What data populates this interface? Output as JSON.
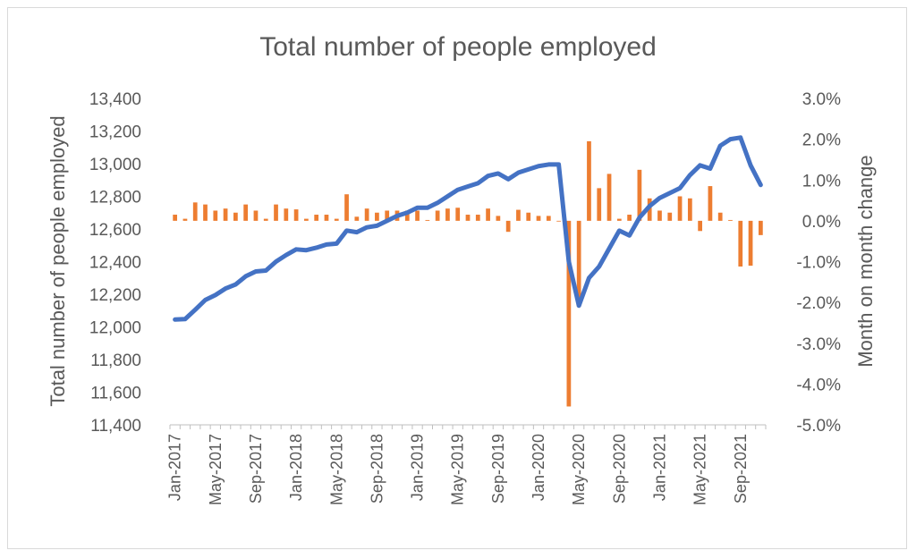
{
  "chart_data": {
    "type": "bar+line",
    "title": "Total number of people employed",
    "ylabel_left": "Total number of people employed",
    "ylabel_right": "Month on month change",
    "ylim_left": [
      11400,
      13400
    ],
    "yticks_left": [
      11400,
      11600,
      11800,
      12000,
      12200,
      12400,
      12600,
      12800,
      13000,
      13200,
      13400
    ],
    "yticklabels_left": [
      "11,400",
      "11,600",
      "11,800",
      "12,000",
      "12,200",
      "12,400",
      "12,600",
      "12,800",
      "13,000",
      "13,200",
      "13,400"
    ],
    "ylim_right": [
      -5.0,
      3.0
    ],
    "yticks_right": [
      -5,
      -4,
      -3,
      -2,
      -1,
      0,
      1,
      2,
      3
    ],
    "yticklabels_right": [
      "-5.0%",
      "-4.0%",
      "-3.0%",
      "-2.0%",
      "-1.0%",
      "0.0%",
      "1.0%",
      "2.0%",
      "3.0%"
    ],
    "xticklabels": [
      "Jan-2017",
      "May-2017",
      "Sep-2017",
      "Jan-2018",
      "May-2018",
      "Sep-2018",
      "Jan-2019",
      "May-2019",
      "Sep-2019",
      "Jan-2020",
      "May-2020",
      "Sep-2020",
      "Jan-2021",
      "May-2021",
      "Sep-2021"
    ],
    "categories": [
      "Jan-2017",
      "Feb-2017",
      "Mar-2017",
      "Apr-2017",
      "May-2017",
      "Jun-2017",
      "Jul-2017",
      "Aug-2017",
      "Sep-2017",
      "Oct-2017",
      "Nov-2017",
      "Dec-2017",
      "Jan-2018",
      "Feb-2018",
      "Mar-2018",
      "Apr-2018",
      "May-2018",
      "Jun-2018",
      "Jul-2018",
      "Aug-2018",
      "Sep-2018",
      "Oct-2018",
      "Nov-2018",
      "Dec-2018",
      "Jan-2019",
      "Feb-2019",
      "Mar-2019",
      "Apr-2019",
      "May-2019",
      "Jun-2019",
      "Jul-2019",
      "Aug-2019",
      "Sep-2019",
      "Oct-2019",
      "Nov-2019",
      "Dec-2019",
      "Jan-2020",
      "Feb-2020",
      "Mar-2020",
      "Apr-2020",
      "May-2020",
      "Jun-2020",
      "Jul-2020",
      "Aug-2020",
      "Sep-2020",
      "Oct-2020",
      "Nov-2020",
      "Dec-2020",
      "Jan-2021",
      "Feb-2021",
      "Mar-2021",
      "Apr-2021",
      "May-2021",
      "Jun-2021",
      "Jul-2021",
      "Aug-2021",
      "Sep-2021",
      "Oct-2021",
      "Nov-2021"
    ],
    "line_series": {
      "axis": "left",
      "color": "#4472c4",
      "values": [
        12045,
        12048,
        12105,
        12165,
        12195,
        12235,
        12260,
        12310,
        12340,
        12345,
        12400,
        12440,
        12475,
        12470,
        12485,
        12505,
        12510,
        12590,
        12580,
        12610,
        12620,
        12650,
        12680,
        12700,
        12730,
        12730,
        12760,
        12800,
        12840,
        12860,
        12880,
        12925,
        12940,
        12905,
        12945,
        12965,
        12985,
        12995,
        12995,
        12400,
        12130,
        12300,
        12370,
        12480,
        12590,
        12560,
        12670,
        12740,
        12790,
        12820,
        12850,
        12930,
        12990,
        12970,
        13110,
        13150,
        13160,
        12990,
        12870
      ]
    },
    "bar_series": {
      "axis": "right",
      "color": "#ed7d31",
      "values": [
        0.15,
        0.05,
        0.45,
        0.4,
        0.25,
        0.3,
        0.2,
        0.4,
        0.25,
        0.05,
        0.4,
        0.3,
        0.28,
        0.05,
        0.15,
        0.15,
        0.05,
        0.65,
        0.1,
        0.3,
        0.2,
        0.25,
        0.25,
        0.25,
        0.25,
        0.02,
        0.25,
        0.3,
        0.32,
        0.15,
        0.15,
        0.3,
        0.12,
        -0.27,
        0.27,
        0.2,
        0.12,
        0.12,
        0.0,
        -4.55,
        -2.1,
        1.95,
        0.8,
        1.15,
        0.05,
        0.15,
        1.25,
        0.55,
        0.25,
        0.2,
        0.6,
        0.55,
        -0.25,
        0.85,
        0.2,
        0.02,
        -1.12,
        -1.1,
        -0.35
      ]
    },
    "grid": false,
    "legend": "none"
  }
}
